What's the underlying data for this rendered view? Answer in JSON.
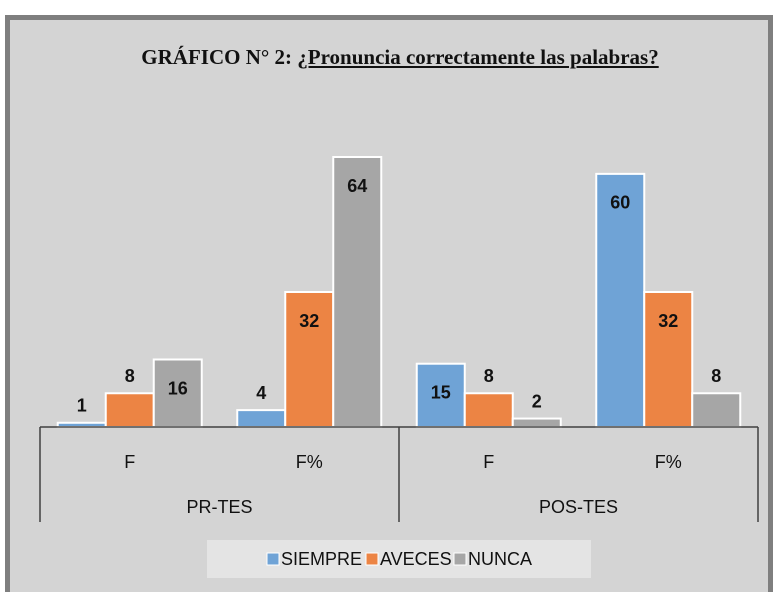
{
  "chart_data": {
    "type": "bar",
    "title": {
      "prefix": "GRÁFICO N° 2:",
      "question": "¿Pronuncia correctamente las palabras?"
    },
    "categories": [
      "F",
      "F%",
      "F",
      "F%"
    ],
    "groups": [
      "PR-TES",
      "POS-TES"
    ],
    "series": [
      {
        "name": "SIEMPRE",
        "color": "#6fa3d6",
        "values": [
          1,
          4,
          15,
          60
        ]
      },
      {
        "name": "AVECES",
        "color": "#ec8444",
        "values": [
          8,
          32,
          8,
          32
        ]
      },
      {
        "name": "NUNCA",
        "color": "#a6a6a6",
        "values": [
          16,
          64,
          2,
          8
        ]
      }
    ],
    "legend": "bottom"
  }
}
